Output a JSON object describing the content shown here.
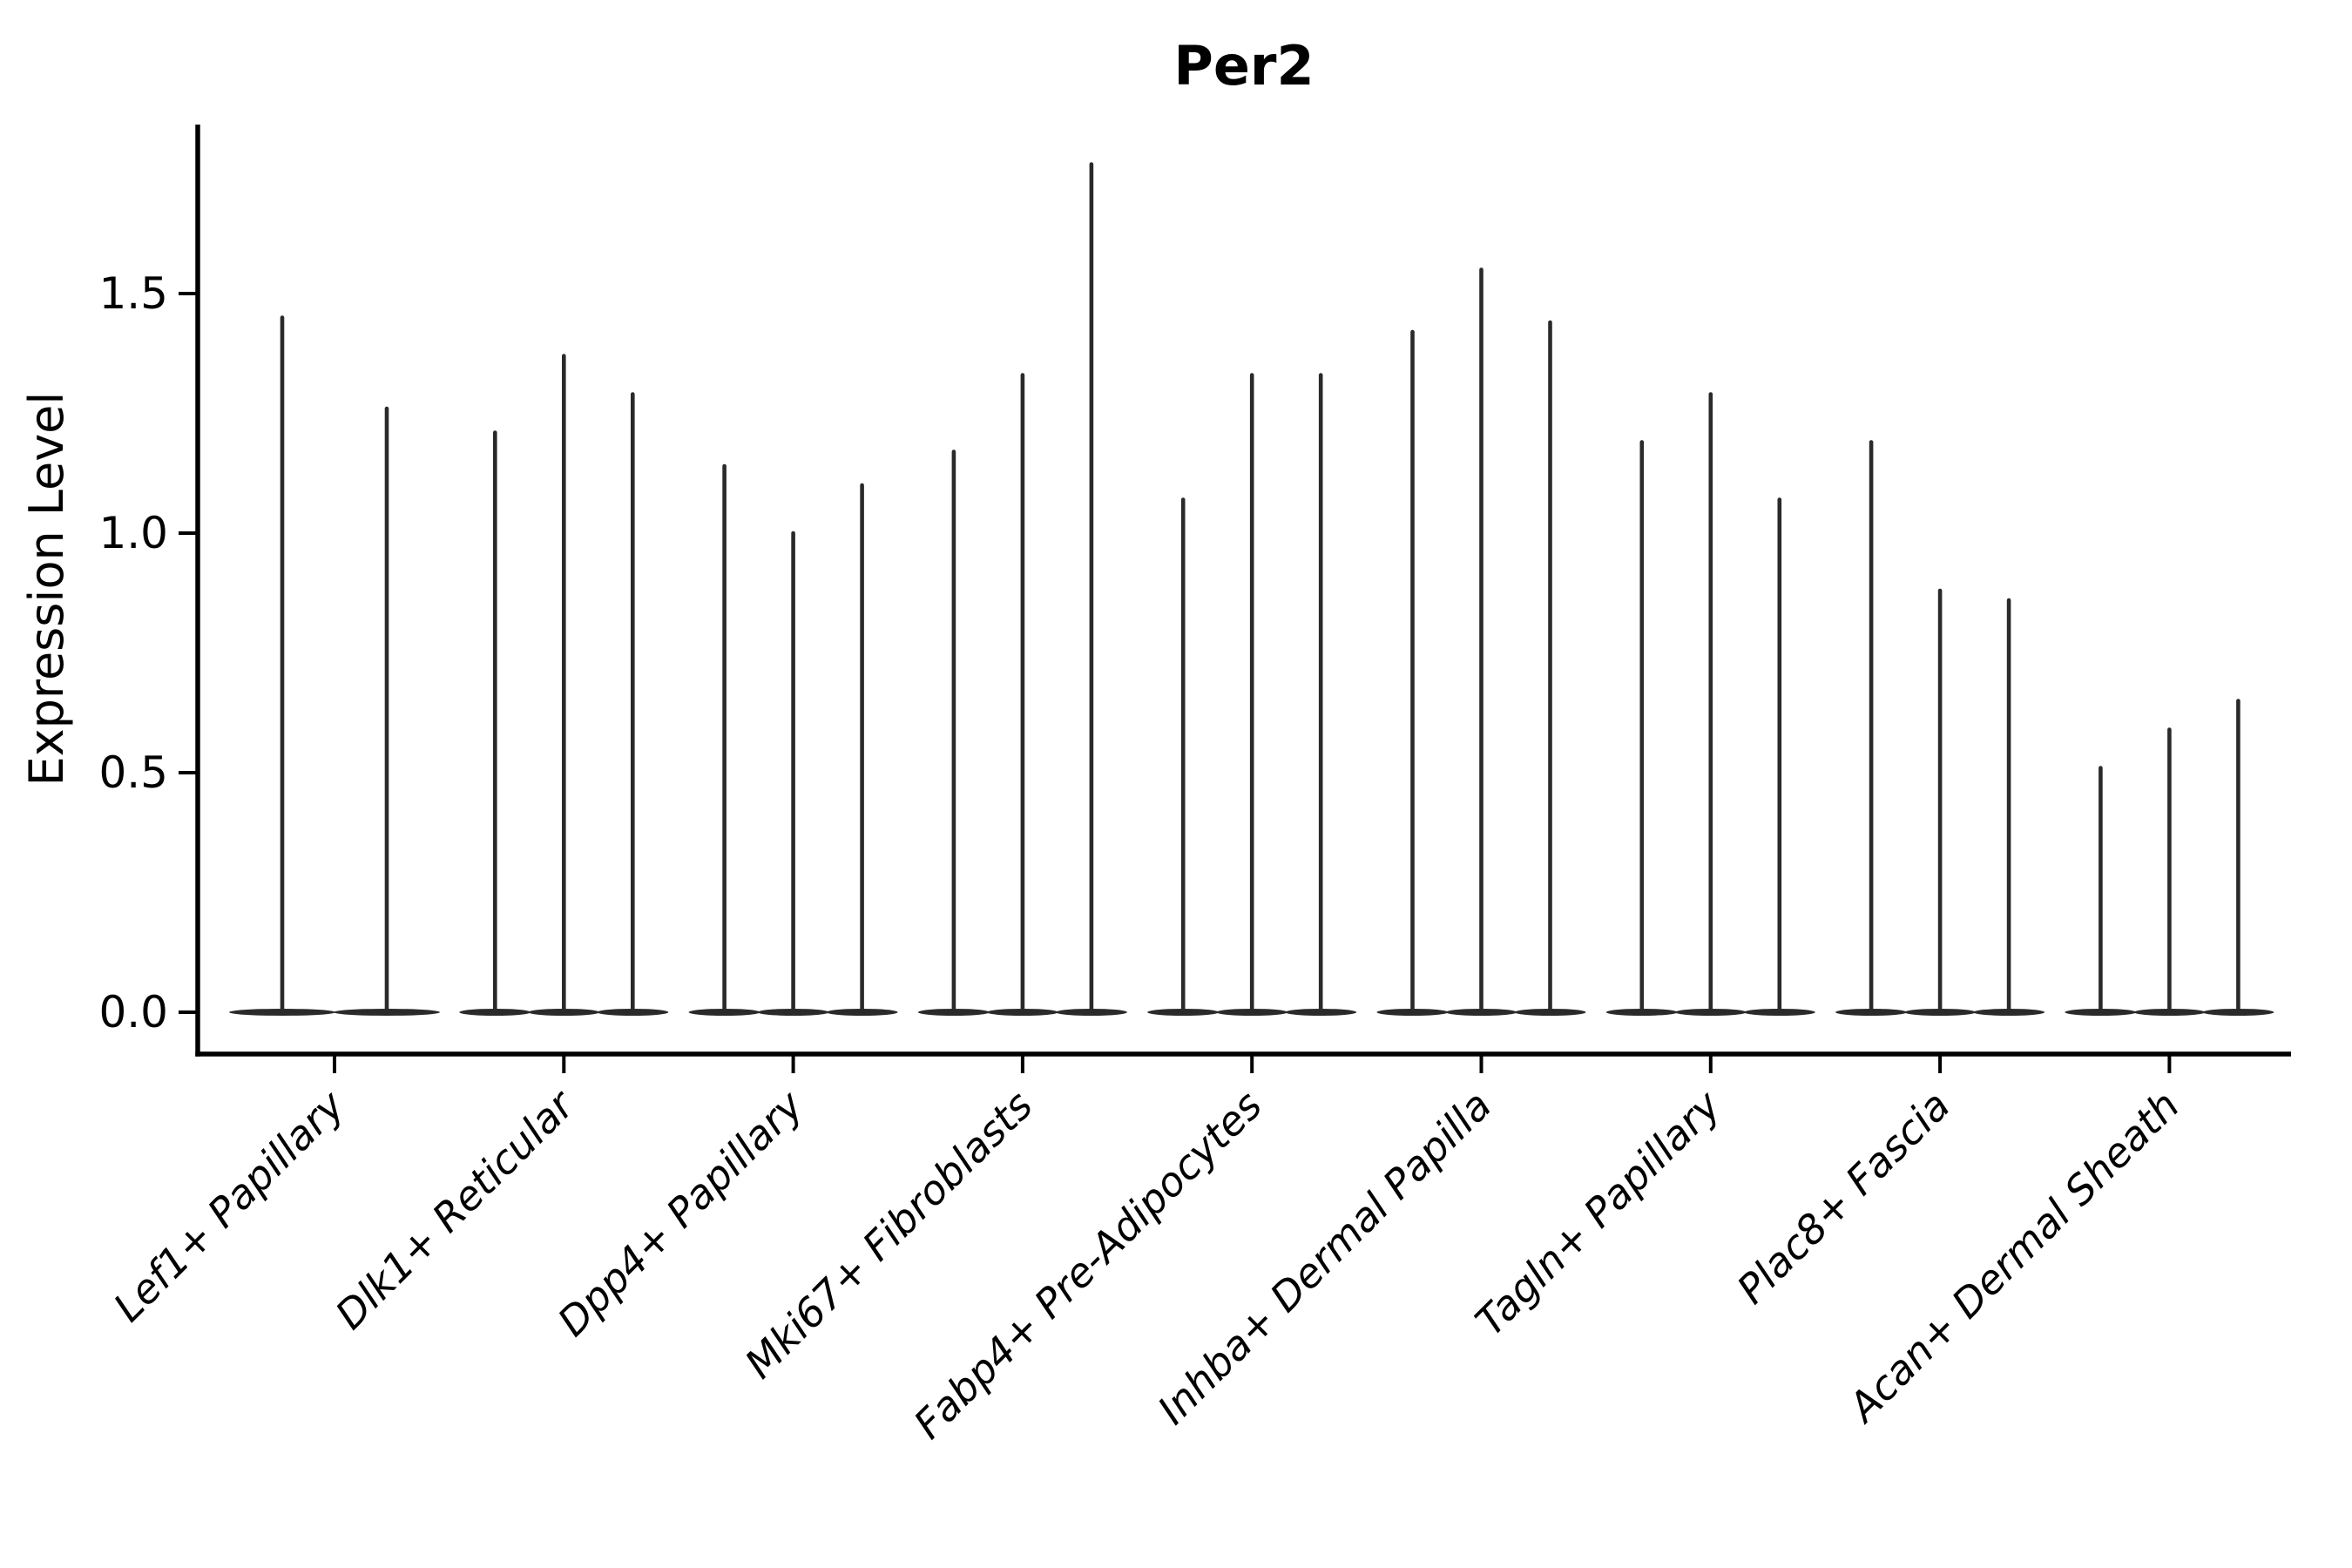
{
  "title": "Per2",
  "style": {
    "violin_color": "#2a2a2a",
    "axis_color": "#000000",
    "background": "#ffffff"
  },
  "chart_data": {
    "type": "violin",
    "title": "Per2",
    "xlabel": "",
    "ylabel": "Expression Level",
    "ylim": [
      0,
      1.85
    ],
    "yticks": [
      0.0,
      0.5,
      1.0,
      1.5
    ],
    "ytick_labels": [
      "0.0",
      "0.5",
      "1.0",
      "1.5"
    ],
    "grid": false,
    "legend": "none",
    "categories": [
      "Lef1+ Papillary",
      "Dlk1+ Reticular",
      "Dpp4+ Papillary",
      "Mki67+ Fibroblasts",
      "Fabp4+ Pre-Adipocytes",
      "Inhba+ Dermal Papilla",
      "Tagln+ Papillary",
      "Plac8+ Fascia",
      "Acan+ Dermal Sheath"
    ],
    "violins": [
      {
        "category": "Lef1+ Papillary",
        "maxima": [
          1.45,
          1.26
        ]
      },
      {
        "category": "Dlk1+ Reticular",
        "maxima": [
          1.21,
          1.37,
          1.29
        ]
      },
      {
        "category": "Dpp4+ Papillary",
        "maxima": [
          1.14,
          1.0,
          1.1
        ]
      },
      {
        "category": "Mki67+ Fibroblasts",
        "maxima": [
          1.17,
          1.33,
          1.77
        ]
      },
      {
        "category": "Fabp4+ Pre-Adipocytes",
        "maxima": [
          1.07,
          1.33,
          1.33
        ]
      },
      {
        "category": "Inhba+ Dermal Papilla",
        "maxima": [
          1.42,
          1.55,
          1.44
        ]
      },
      {
        "category": "Tagln+ Papillary",
        "maxima": [
          1.19,
          1.29,
          1.07
        ]
      },
      {
        "category": "Plac8+ Fascia",
        "maxima": [
          1.19,
          0.88,
          0.86
        ]
      },
      {
        "category": "Acan+ Dermal Sheath",
        "maxima": [
          0.51,
          0.59,
          0.65
        ]
      }
    ],
    "shape_note": "Each violin is a thin vertical spike rising from a wide flat density base at expression 0"
  }
}
